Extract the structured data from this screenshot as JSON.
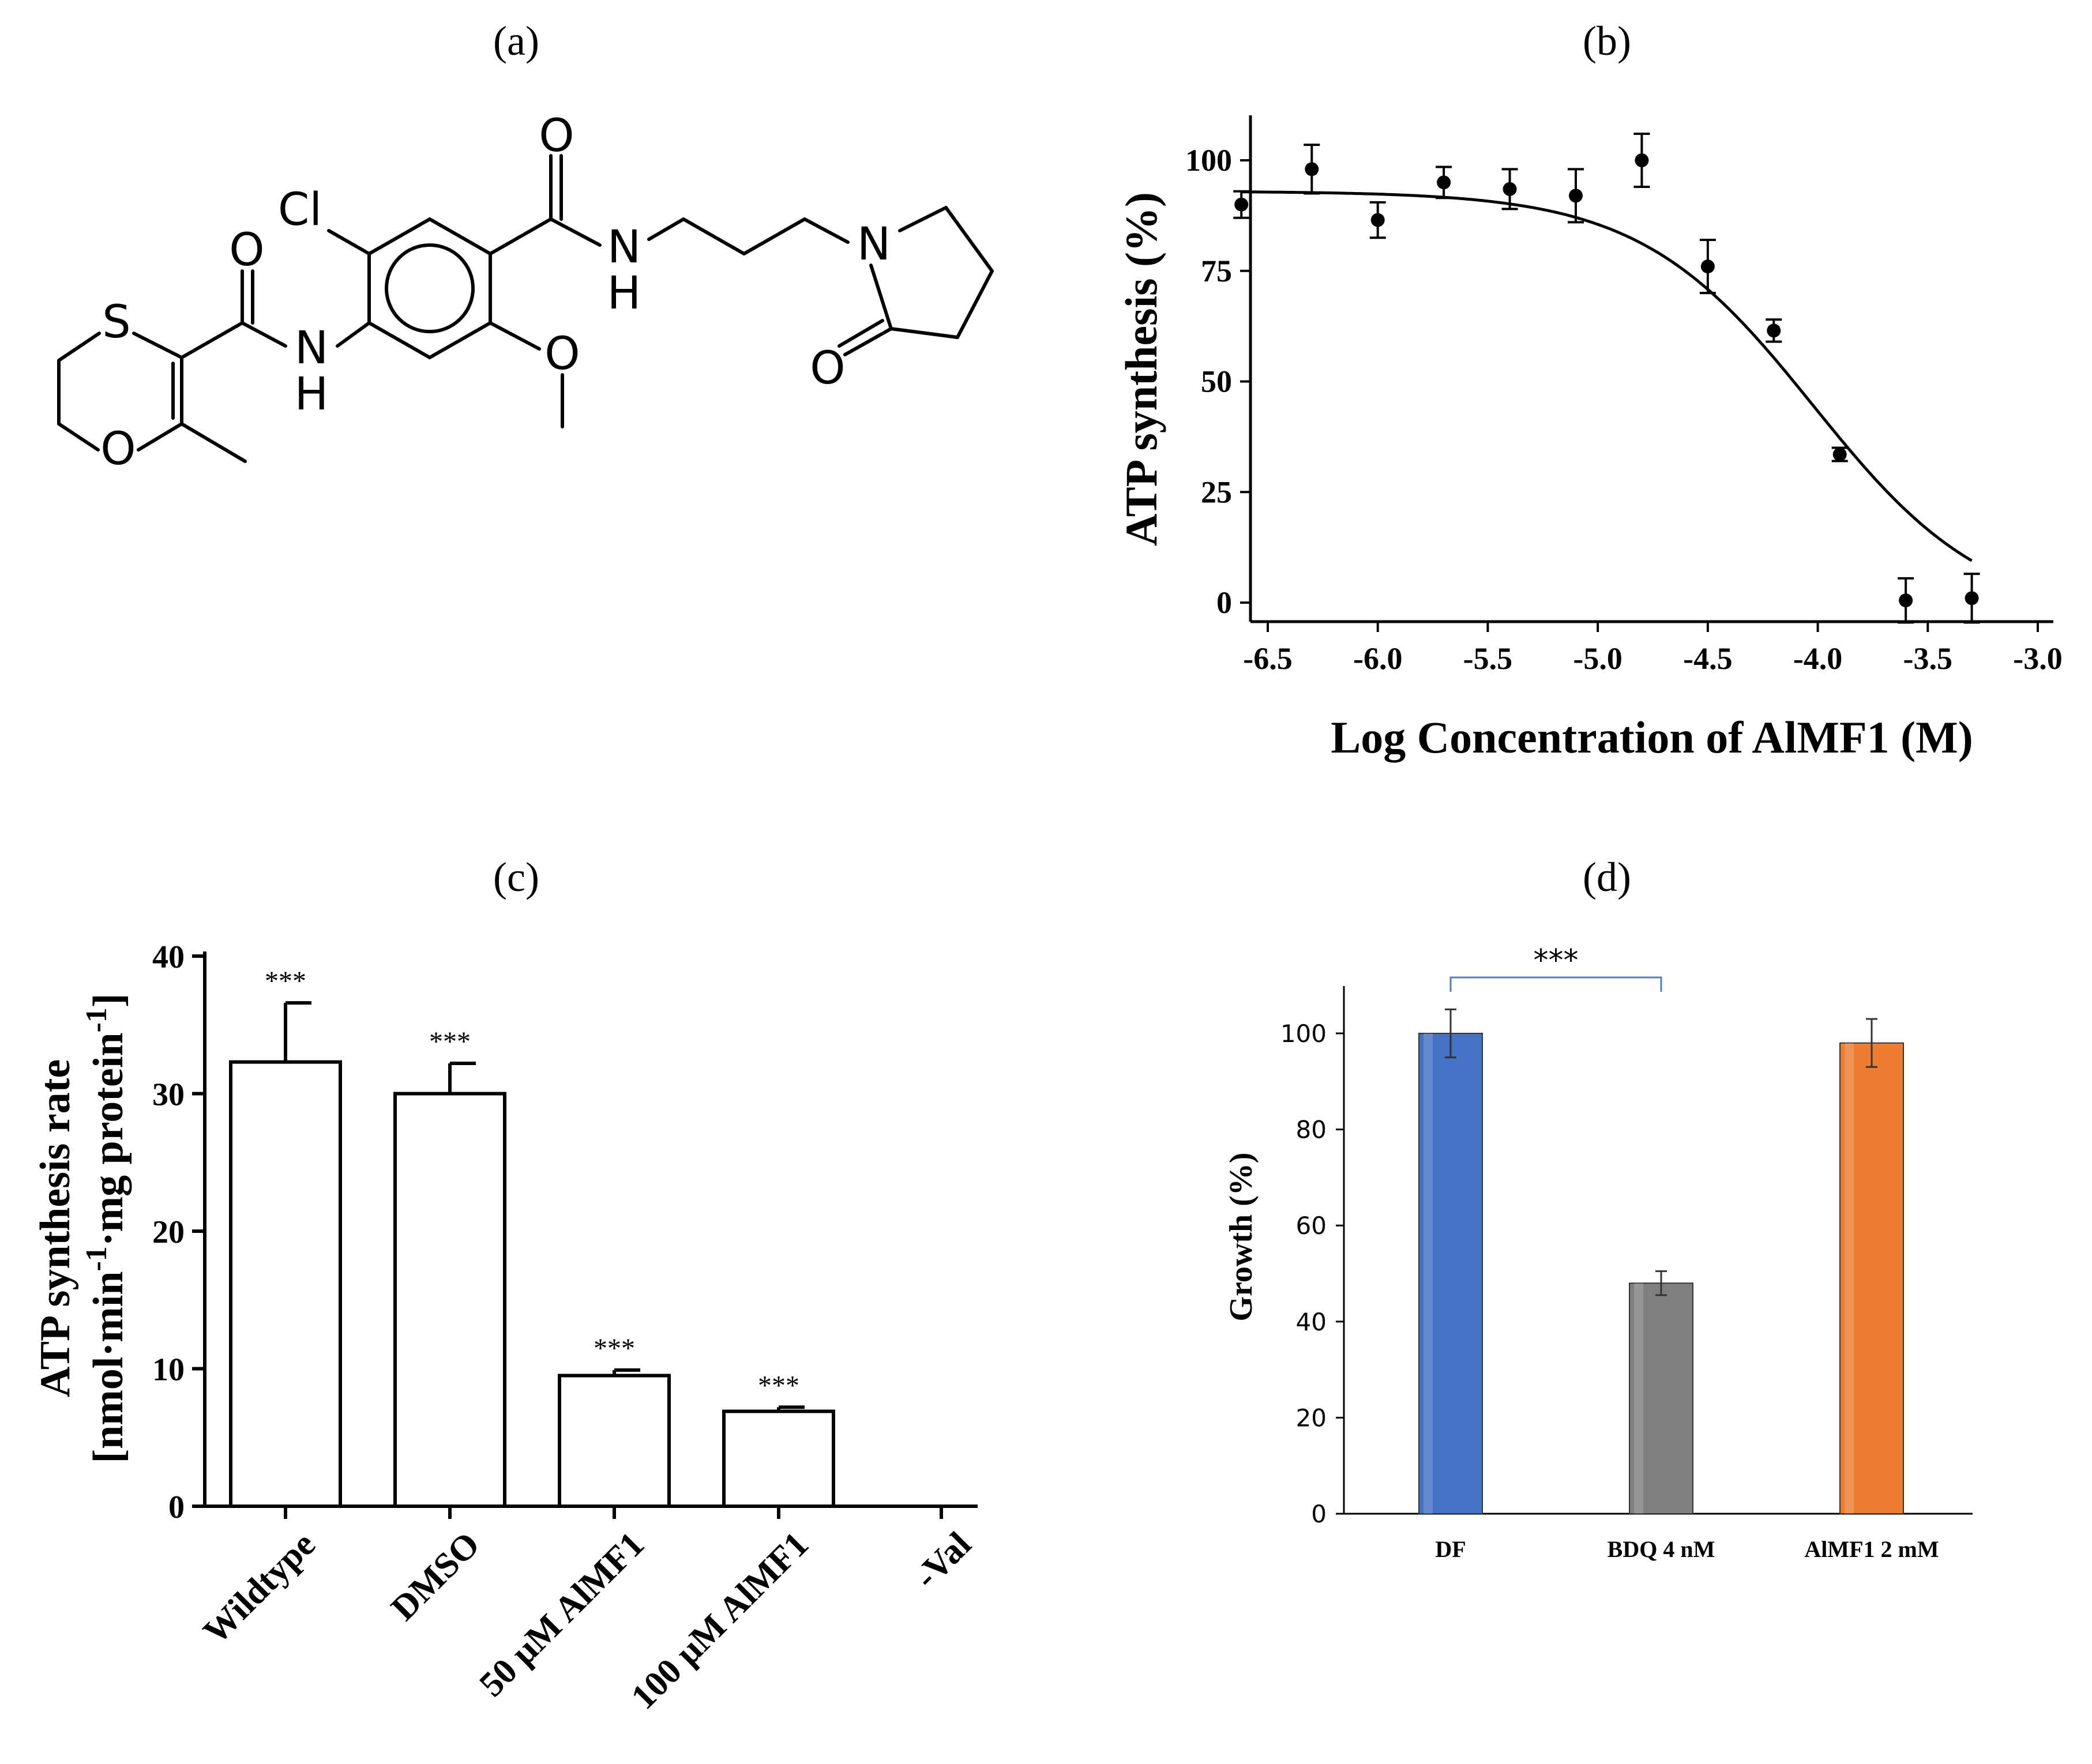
{
  "panels": {
    "a": {
      "label": "(a)"
    },
    "b": {
      "label": "(b)"
    },
    "c": {
      "label": "(c)"
    },
    "d": {
      "label": "(d)"
    }
  },
  "molecule": {
    "atoms": {
      "cl": "Cl",
      "s": "S",
      "o_ring": "O",
      "o_amide1": "O",
      "nh1_n": "N",
      "nh1_h": "H",
      "o_amide2": "O",
      "nh2_n": "N",
      "nh2_h": "H",
      "o_methoxy": "O",
      "n_pyrr": "N",
      "o_pyrr": "O"
    }
  },
  "chart_data": [
    {
      "panel": "b",
      "type": "scatter",
      "xlabel": "Log Concentration of AlMF1 (M)",
      "ylabel": "ATP synthesis (%)",
      "xlim": [
        -6.7,
        -3.0
      ],
      "ylim": [
        -5,
        110
      ],
      "xticks": [
        -6.5,
        -6.0,
        -5.5,
        -5.0,
        -4.5,
        -4.0,
        -3.5,
        -3.0
      ],
      "xtick_labels": [
        "-6.5",
        "-6.0",
        "-5.5",
        "-5.0",
        "-4.5",
        "-4.0",
        "-3.5",
        "-3.0"
      ],
      "yticks": [
        0,
        25,
        50,
        75,
        100
      ],
      "ytick_labels": [
        "0",
        "25",
        "50",
        "75",
        "100"
      ],
      "points": [
        {
          "x": -6.62,
          "y": 90,
          "err": 3
        },
        {
          "x": -6.3,
          "y": 98,
          "err": 5.5
        },
        {
          "x": -6.0,
          "y": 86.5,
          "err": 4
        },
        {
          "x": -5.7,
          "y": 95,
          "err": 3.5
        },
        {
          "x": -5.4,
          "y": 93.5,
          "err": 4.5
        },
        {
          "x": -5.1,
          "y": 92,
          "err": 6
        },
        {
          "x": -4.8,
          "y": 100,
          "err": 6
        },
        {
          "x": -4.5,
          "y": 76,
          "err": 6
        },
        {
          "x": -4.2,
          "y": 61.5,
          "err": 2.5
        },
        {
          "x": -3.9,
          "y": 33.5,
          "err": 1.5
        },
        {
          "x": -3.6,
          "y": 0.5,
          "err": 5
        },
        {
          "x": -3.3,
          "y": 1,
          "err": 5.5
        }
      ],
      "fit": {
        "model": "sigmoidal dose-response",
        "top": 93,
        "bottom": -4,
        "logIC50": -4.02,
        "hill": 1.1
      }
    },
    {
      "panel": "c",
      "type": "bar",
      "ylabel_line1": "ATP synthesis rate",
      "ylabel_line2": "[nmol·min-1·mg protein-1]",
      "ylabel_line2_parts": [
        "[nmol·min",
        "-1",
        "·mg protein",
        "-1",
        "]"
      ],
      "ylim": [
        0,
        40
      ],
      "yticks": [
        0,
        10,
        20,
        30,
        40
      ],
      "ytick_labels": [
        "0",
        "10",
        "20",
        "30",
        "40"
      ],
      "categories": [
        "Wildtype",
        "DMSO",
        "50 μM AlMF1",
        "100 μM AlMF1",
        "-Val"
      ],
      "values": [
        32.3,
        30.0,
        9.5,
        6.9,
        0
      ],
      "errors": [
        4.3,
        2.2,
        0.4,
        0.3,
        0
      ],
      "annotations": [
        "***",
        "***",
        "***",
        "***",
        ""
      ]
    },
    {
      "panel": "d",
      "type": "bar",
      "ylabel": "Growth (%)",
      "ylim": [
        0,
        110
      ],
      "yticks": [
        0,
        20,
        40,
        60,
        80,
        100
      ],
      "ytick_labels": [
        "0",
        "20",
        "40",
        "60",
        "80",
        "100"
      ],
      "categories": [
        "DF",
        "BDQ 4 nM",
        "AlMF1 2 mM"
      ],
      "values": [
        100,
        48,
        98
      ],
      "errors": [
        5,
        2.5,
        5
      ],
      "colors": [
        "#4472c4",
        "#7f7f7f",
        "#ed7d31"
      ],
      "significance": {
        "from": "DF",
        "to": "BDQ 4 nM",
        "label": "***"
      }
    }
  ]
}
